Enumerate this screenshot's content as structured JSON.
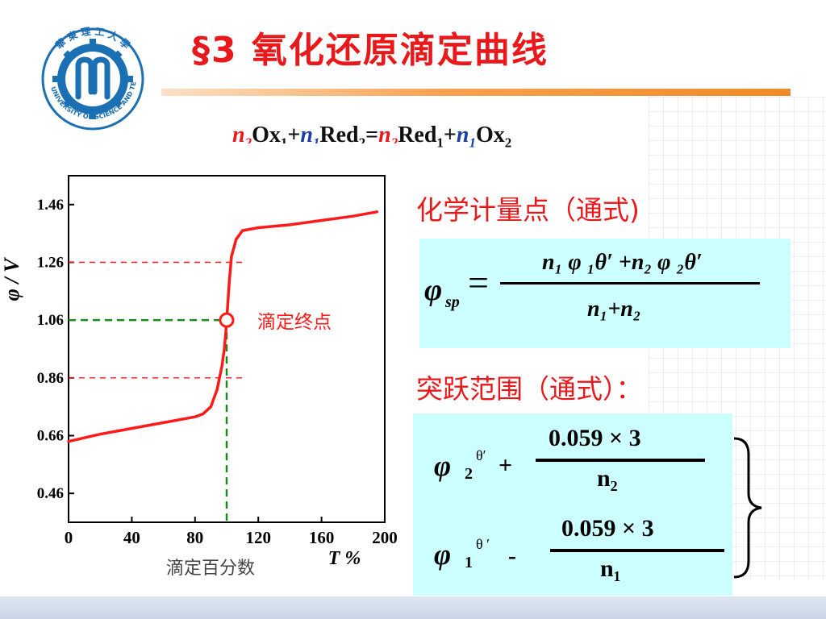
{
  "title": "§3  氧化还原滴定曲线",
  "logo": {
    "ring_text": "華東理工大學 EAST CHINA UNIVERSITY OF SCIENCE AND TECHNOLOGY",
    "colors": {
      "primary": "#1b6fb3",
      "white": "#ffffff"
    }
  },
  "equation": {
    "n2a": "n",
    "s2a": "2",
    "ox": "Ox",
    "s1a": "1",
    "plus1": "+",
    "n1a": "n",
    "s1b": "1",
    "red": "Red",
    "s2b": "2",
    "eq": "=",
    "n2b": "n",
    "s2c": "2",
    "red2": "Red",
    "s1c": "1",
    "plus2": "+",
    "n1b": "n",
    "s1d": "1",
    "ox2": "Ox",
    "s2d": "2"
  },
  "sp_heading": "化学计量点（通式)",
  "jump_heading": "突跃范围（通式）：",
  "sp_formula": {
    "lhs": "φ",
    "lhs_sub": "sp",
    "equals": "=",
    "numerator": "n₁ φ ₁θ′ +n₂ φ ₂θ′",
    "denominator": "n₁+n₂"
  },
  "jump_formula": {
    "upper_phi": "φ",
    "upper_sub": "2",
    "upper_sup": "θ′",
    "upper_op": "+",
    "upper_num": "0.059 × 3",
    "upper_den": "n₂",
    "lower_phi": "φ",
    "lower_sub": "1",
    "lower_sup": "θ ′",
    "lower_op": "-",
    "lower_num": "0.059 × 3",
    "lower_den": "n₁"
  },
  "chart_data": {
    "type": "line",
    "xlabel": "滴定百分数",
    "xlabel_unit": "T %",
    "ylabel": "φ / V",
    "xlim": [
      0,
      200
    ],
    "ylim": [
      0.36,
      1.56
    ],
    "x_ticks": [
      0,
      40,
      80,
      120,
      160,
      200
    ],
    "y_ticks": [
      "0.46",
      "0.66",
      "0.86",
      "1.06",
      "1.26",
      "1.46"
    ],
    "y_tick_values": [
      0.46,
      0.66,
      0.86,
      1.06,
      1.26,
      1.46
    ],
    "series": [
      {
        "color": "#ff1a1a",
        "x": [
          0,
          20,
          40,
          60,
          80,
          85,
          90,
          94,
          97,
          98.5,
          99.5,
          100,
          100.5,
          101.5,
          103,
          106,
          110,
          120,
          140,
          160,
          180,
          195
        ],
        "y": [
          0.64,
          0.665,
          0.685,
          0.705,
          0.725,
          0.735,
          0.76,
          0.82,
          0.9,
          0.96,
          1.02,
          1.06,
          1.1,
          1.18,
          1.28,
          1.34,
          1.37,
          1.38,
          1.39,
          1.405,
          1.42,
          1.435
        ]
      }
    ],
    "reference_lines": [
      {
        "y": 1.26,
        "color": "#ff1a1a",
        "style": "dashed"
      },
      {
        "y": 0.86,
        "color": "#ff1a1a",
        "style": "dashed"
      },
      {
        "y": 1.06,
        "color": "#1a8a1a",
        "style": "dashed"
      }
    ],
    "endpoint": {
      "x": 100,
      "y": 1.06,
      "label": "滴定终点",
      "color": "#ff1a1a"
    },
    "endpoint_vline_color": "#1a8a1a"
  }
}
